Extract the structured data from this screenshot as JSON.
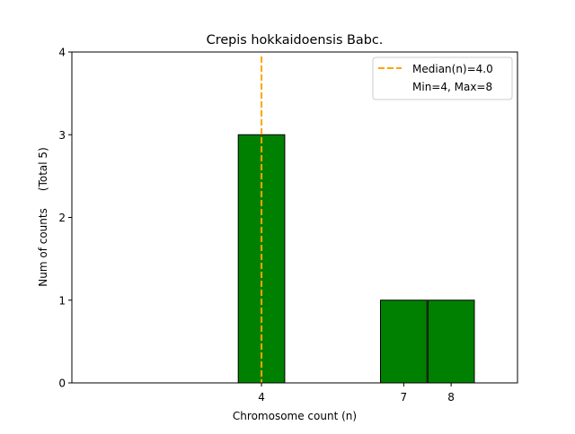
{
  "chart_data": {
    "type": "bar",
    "title": "Crepis hokkaidoensis Babc.",
    "xlabel": "Chromosome count (n)",
    "ylabel": "Num of counts     (Total 5)",
    "x": [
      4,
      7,
      8
    ],
    "values": [
      3,
      1,
      1
    ],
    "bar_color": "#008000",
    "bar_edge_color": "#000000",
    "xlim": [
      0,
      9.4
    ],
    "ylim": [
      0,
      4
    ],
    "yticks": [
      0,
      1,
      2,
      3,
      4
    ],
    "median": 4.0,
    "median_color": "#FFA500",
    "legend": {
      "position": "top-right",
      "entries": [
        "Median(n)=4.0",
        "Min=4, Max=8"
      ]
    }
  }
}
